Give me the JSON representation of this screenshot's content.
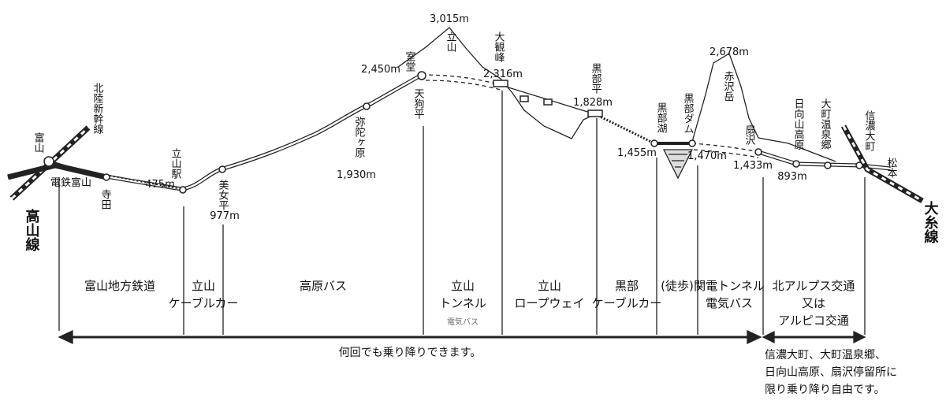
{
  "vertical_labels": [
    "富山",
    "北陸新幹線",
    "高山線",
    "寺田",
    "立山駅",
    "美女平",
    "弥陀ヶ原",
    "室堂",
    "天狗平",
    "立山",
    "大観峰",
    "黒部平",
    "黒部湖",
    "黒部ダム",
    "赤沢岳",
    "扇沢",
    "日向山高原",
    "大町温泉郷",
    "信濃大町",
    "松本",
    "大糸線"
  ],
  "horizontal_label": "電鉄富山",
  "elevations": [
    "3,015m",
    "2,450m",
    "2,316m",
    "1,828m",
    "1,455m",
    "1,470m",
    "2,678m",
    "1,433m",
    "893m",
    "475m",
    "977m",
    "1,930m"
  ],
  "segments": [
    [
      "富山地方鉄道"
    ],
    [
      "立山",
      "ケーブルカー"
    ],
    [
      "高原バス"
    ],
    [
      "立山",
      "トンネル",
      "電気バス"
    ],
    [
      "立山",
      "ロープウェイ"
    ],
    [
      "黒部",
      "ケーブルカー"
    ],
    [
      "(徒歩)"
    ],
    [
      "関電トンネル",
      "電気バス"
    ],
    [
      "北アルプス交通",
      "又は",
      "アルピコ交通"
    ]
  ],
  "free_section_note": "何回でも乗り降りできます。",
  "note_lines": [
    "信濃大町、大町温泉郷、",
    "日向山高原、扇沢停留所に",
    "限り乗り降り自由です。"
  ]
}
